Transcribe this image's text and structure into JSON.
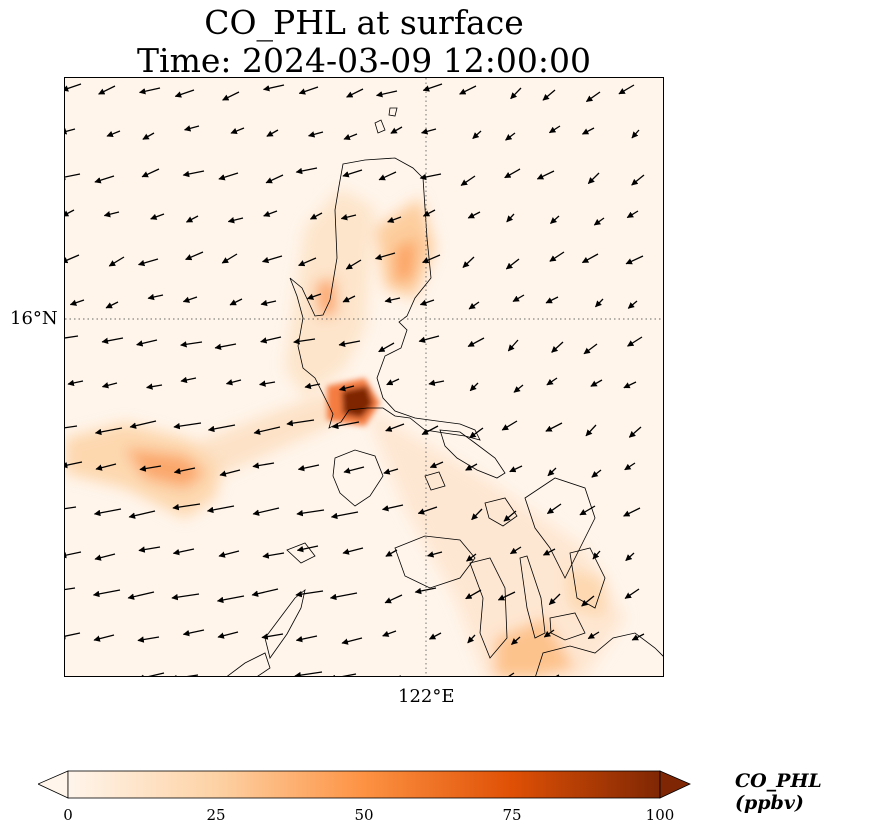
{
  "title": {
    "line1": "CO_PHL at surface",
    "line2": "Time: 2024-03-09 12:00:00"
  },
  "axes": {
    "lat_label": "16°N",
    "lon_label": "122°E"
  },
  "colorbar": {
    "label": "CO_PHL (ppbv)",
    "colormap": "Oranges",
    "range": [
      0,
      100
    ],
    "ticks": [
      "0",
      "25",
      "50",
      "75",
      "100"
    ],
    "colors": [
      "#fff5eb",
      "#fdd2a5",
      "#fd9243",
      "#df5005",
      "#7f2704"
    ],
    "extend": "both"
  },
  "map": {
    "features": [
      "coastlines",
      "wind-vectors",
      "gridlines-dotted"
    ],
    "peak_location": "Manila area (~14.6°N, 121.0°E), value near 100 ppbv"
  }
}
